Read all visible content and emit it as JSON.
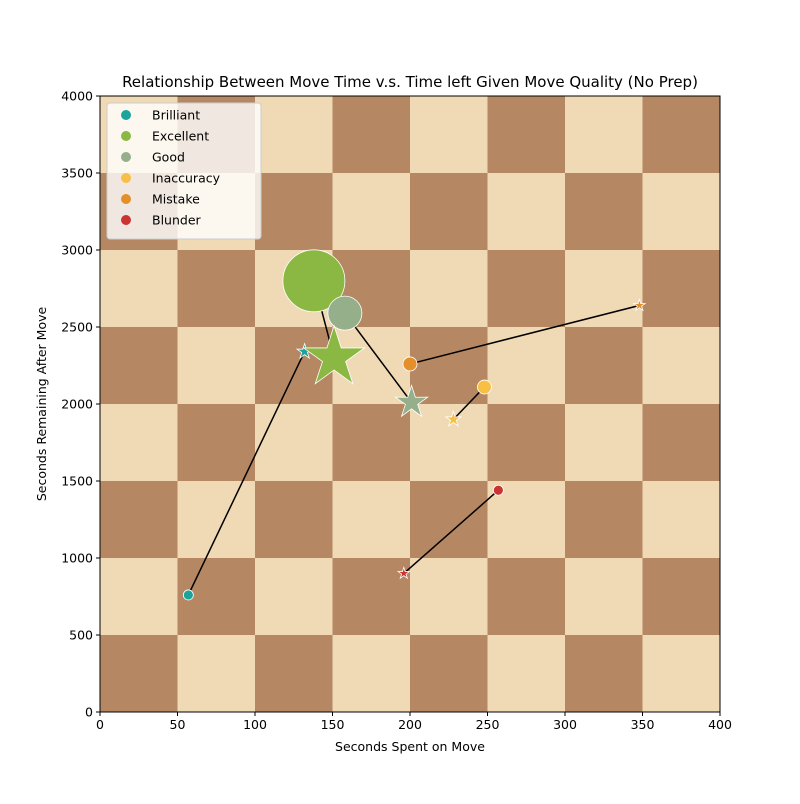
{
  "chart_data": {
    "type": "scatter",
    "title": "Relationship Between Move Time v.s. Time left Given Move Quality (No Prep)",
    "xlabel": "Seconds Spent on Move",
    "ylabel": "Seconds Remaining After Move",
    "xlim": [
      0,
      400
    ],
    "ylim": [
      0,
      4000
    ],
    "xticks": [
      0,
      50,
      100,
      150,
      200,
      250,
      300,
      350,
      400
    ],
    "yticks": [
      0,
      500,
      1000,
      1500,
      2000,
      2500,
      3000,
      3500,
      4000
    ],
    "background": {
      "style": "checkerboard",
      "columns": 8,
      "rows": 8,
      "light_color": "#f0d9b5",
      "dark_color": "#b58863"
    },
    "legend_position": "top-left",
    "categories": [
      {
        "name": "Brilliant",
        "color": "#1ba39c"
      },
      {
        "name": "Excellent",
        "color": "#8bb843"
      },
      {
        "name": "Good",
        "color": "#96af8b"
      },
      {
        "name": "Inaccuracy",
        "color": "#f7c045"
      },
      {
        "name": "Mistake",
        "color": "#e58f2a"
      },
      {
        "name": "Blunder",
        "color": "#ca3431"
      }
    ],
    "series": [
      {
        "category": "Brilliant",
        "circle": {
          "x": 57,
          "y": 760,
          "size": 5
        },
        "star": {
          "x": 132,
          "y": 2340,
          "size": 8
        }
      },
      {
        "category": "Excellent",
        "circle": {
          "x": 138,
          "y": 2800,
          "size": 31
        },
        "star": {
          "x": 151,
          "y": 2300,
          "size": 32
        }
      },
      {
        "category": "Good",
        "circle": {
          "x": 158,
          "y": 2590,
          "size": 17
        },
        "star": {
          "x": 201,
          "y": 2010,
          "size": 17
        }
      },
      {
        "category": "Inaccuracy",
        "circle": {
          "x": 248,
          "y": 2110,
          "size": 7
        },
        "star": {
          "x": 228,
          "y": 1900,
          "size": 8
        }
      },
      {
        "category": "Mistake",
        "circle": {
          "x": 200,
          "y": 2260,
          "size": 7
        },
        "star": {
          "x": 348,
          "y": 2640,
          "size": 6
        }
      },
      {
        "category": "Blunder",
        "circle": {
          "x": 257,
          "y": 1440,
          "size": 5
        },
        "star": {
          "x": 196,
          "y": 900,
          "size": 6
        }
      }
    ]
  }
}
